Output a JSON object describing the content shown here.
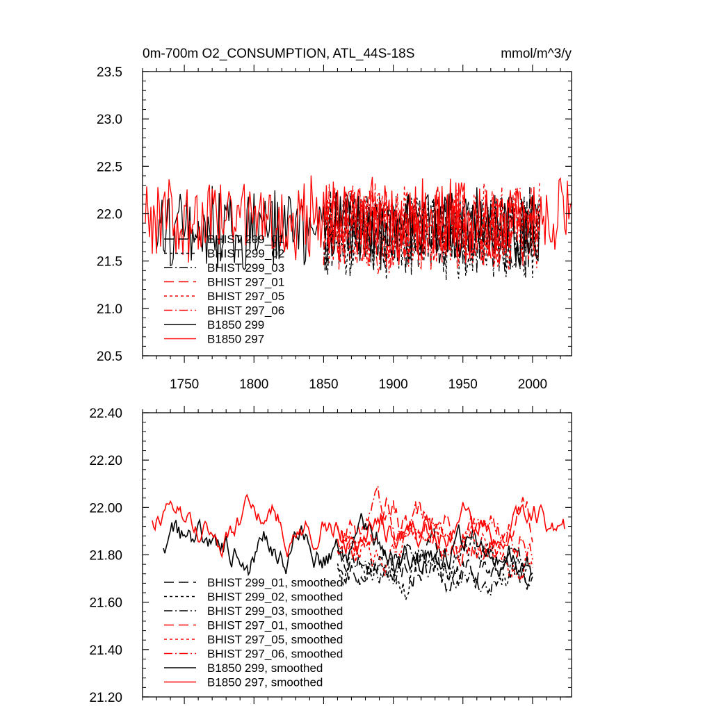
{
  "colors": {
    "black": "#000000",
    "red": "#ff0000",
    "background": "#ffffff"
  },
  "chart_data": [
    {
      "type": "line",
      "title": "0m-700m O2_CONSUMPTION, ATL_44S-18S",
      "units": "mmol/m^3/y",
      "xlabel": "",
      "ylabel": "",
      "xlim": [
        1720,
        2028
      ],
      "ylim": [
        20.5,
        23.5
      ],
      "x_ticks": [
        1750,
        1800,
        1850,
        1900,
        1950,
        2000
      ],
      "x_tick_labels": [
        "1750",
        "1800",
        "1850",
        "1900",
        "1950",
        "2000"
      ],
      "y_ticks": [
        20.5,
        21.0,
        21.5,
        22.0,
        22.5,
        23.0,
        23.5
      ],
      "y_tick_labels": [
        "20.5",
        "21.0",
        "21.5",
        "22.0",
        "22.5",
        "23.0",
        "23.5"
      ],
      "legend_position": "lower-left",
      "series": [
        {
          "name": "BHIST 299_01",
          "color": "#000000",
          "dash": "long-dash",
          "start": 1850,
          "end": 2005,
          "mean": 21.8,
          "amp": 0.4,
          "seed": 11
        },
        {
          "name": "BHIST 299_02",
          "color": "#000000",
          "dash": "dot",
          "start": 1850,
          "end": 2005,
          "mean": 21.8,
          "amp": 0.42,
          "seed": 12
        },
        {
          "name": "BHIST 299_03",
          "color": "#000000",
          "dash": "dash-dot",
          "start": 1850,
          "end": 2005,
          "mean": 21.8,
          "amp": 0.4,
          "seed": 13
        },
        {
          "name": "BHIST 297_01",
          "color": "#ff0000",
          "dash": "long-dash",
          "start": 1850,
          "end": 2005,
          "mean": 21.85,
          "amp": 0.4,
          "seed": 14
        },
        {
          "name": "BHIST 297_05",
          "color": "#ff0000",
          "dash": "dot",
          "start": 1850,
          "end": 2005,
          "mean": 21.85,
          "amp": 0.42,
          "seed": 15
        },
        {
          "name": "BHIST 297_06",
          "color": "#ff0000",
          "dash": "dash-dot",
          "start": 1850,
          "end": 2005,
          "mean": 21.85,
          "amp": 0.4,
          "seed": 16
        },
        {
          "name": "B1850 299",
          "color": "#000000",
          "dash": "solid",
          "start": 1730,
          "end": 2005,
          "mean": 21.85,
          "amp": 0.38,
          "seed": 17
        },
        {
          "name": "B1850 297",
          "color": "#ff0000",
          "dash": "solid",
          "start": 1722,
          "end": 2028,
          "mean": 21.95,
          "amp": 0.38,
          "seed": 18
        }
      ]
    },
    {
      "type": "line",
      "title": "",
      "xlabel": "",
      "ylabel": "",
      "xlim": [
        1720,
        2028
      ],
      "ylim": [
        21.2,
        22.4
      ],
      "x_ticks": [
        1750,
        1800,
        1850,
        1900,
        1950,
        2000
      ],
      "x_tick_labels": [],
      "y_ticks": [
        21.2,
        21.4,
        21.6,
        21.8,
        22.0,
        22.2,
        22.4
      ],
      "y_tick_labels": [
        "21.20",
        "21.40",
        "21.60",
        "21.80",
        "22.00",
        "22.20",
        "22.40"
      ],
      "legend_position": "lower-left",
      "series": [
        {
          "name": "BHIST 299_01, smoothed",
          "color": "#000000",
          "dash": "long-dash",
          "start": 1860,
          "end": 2000,
          "mean": 21.78,
          "amp": 0.2,
          "seed": 21
        },
        {
          "name": "BHIST 299_02, smoothed",
          "color": "#000000",
          "dash": "dot",
          "start": 1860,
          "end": 2000,
          "mean": 21.78,
          "amp": 0.22,
          "seed": 22
        },
        {
          "name": "BHIST 299_03, smoothed",
          "color": "#000000",
          "dash": "dash-dot",
          "start": 1860,
          "end": 2000,
          "mean": 21.8,
          "amp": 0.2,
          "seed": 23
        },
        {
          "name": "BHIST 297_01, smoothed",
          "color": "#ff0000",
          "dash": "long-dash",
          "start": 1860,
          "end": 2000,
          "mean": 21.88,
          "amp": 0.22,
          "seed": 24
        },
        {
          "name": "BHIST 297_05, smoothed",
          "color": "#ff0000",
          "dash": "dot",
          "start": 1860,
          "end": 2000,
          "mean": 21.85,
          "amp": 0.22,
          "seed": 25
        },
        {
          "name": "BHIST 297_06, smoothed",
          "color": "#ff0000",
          "dash": "dash-dot",
          "start": 1860,
          "end": 2000,
          "mean": 21.88,
          "amp": 0.22,
          "seed": 26
        },
        {
          "name": "B1850 299, smoothed",
          "color": "#000000",
          "dash": "solid",
          "start": 1735,
          "end": 2000,
          "mean": 21.82,
          "amp": 0.2,
          "seed": 27
        },
        {
          "name": "B1850 297, smoothed",
          "color": "#ff0000",
          "dash": "solid",
          "start": 1727,
          "end": 2023,
          "mean": 21.92,
          "amp": 0.18,
          "seed": 28
        }
      ]
    }
  ]
}
